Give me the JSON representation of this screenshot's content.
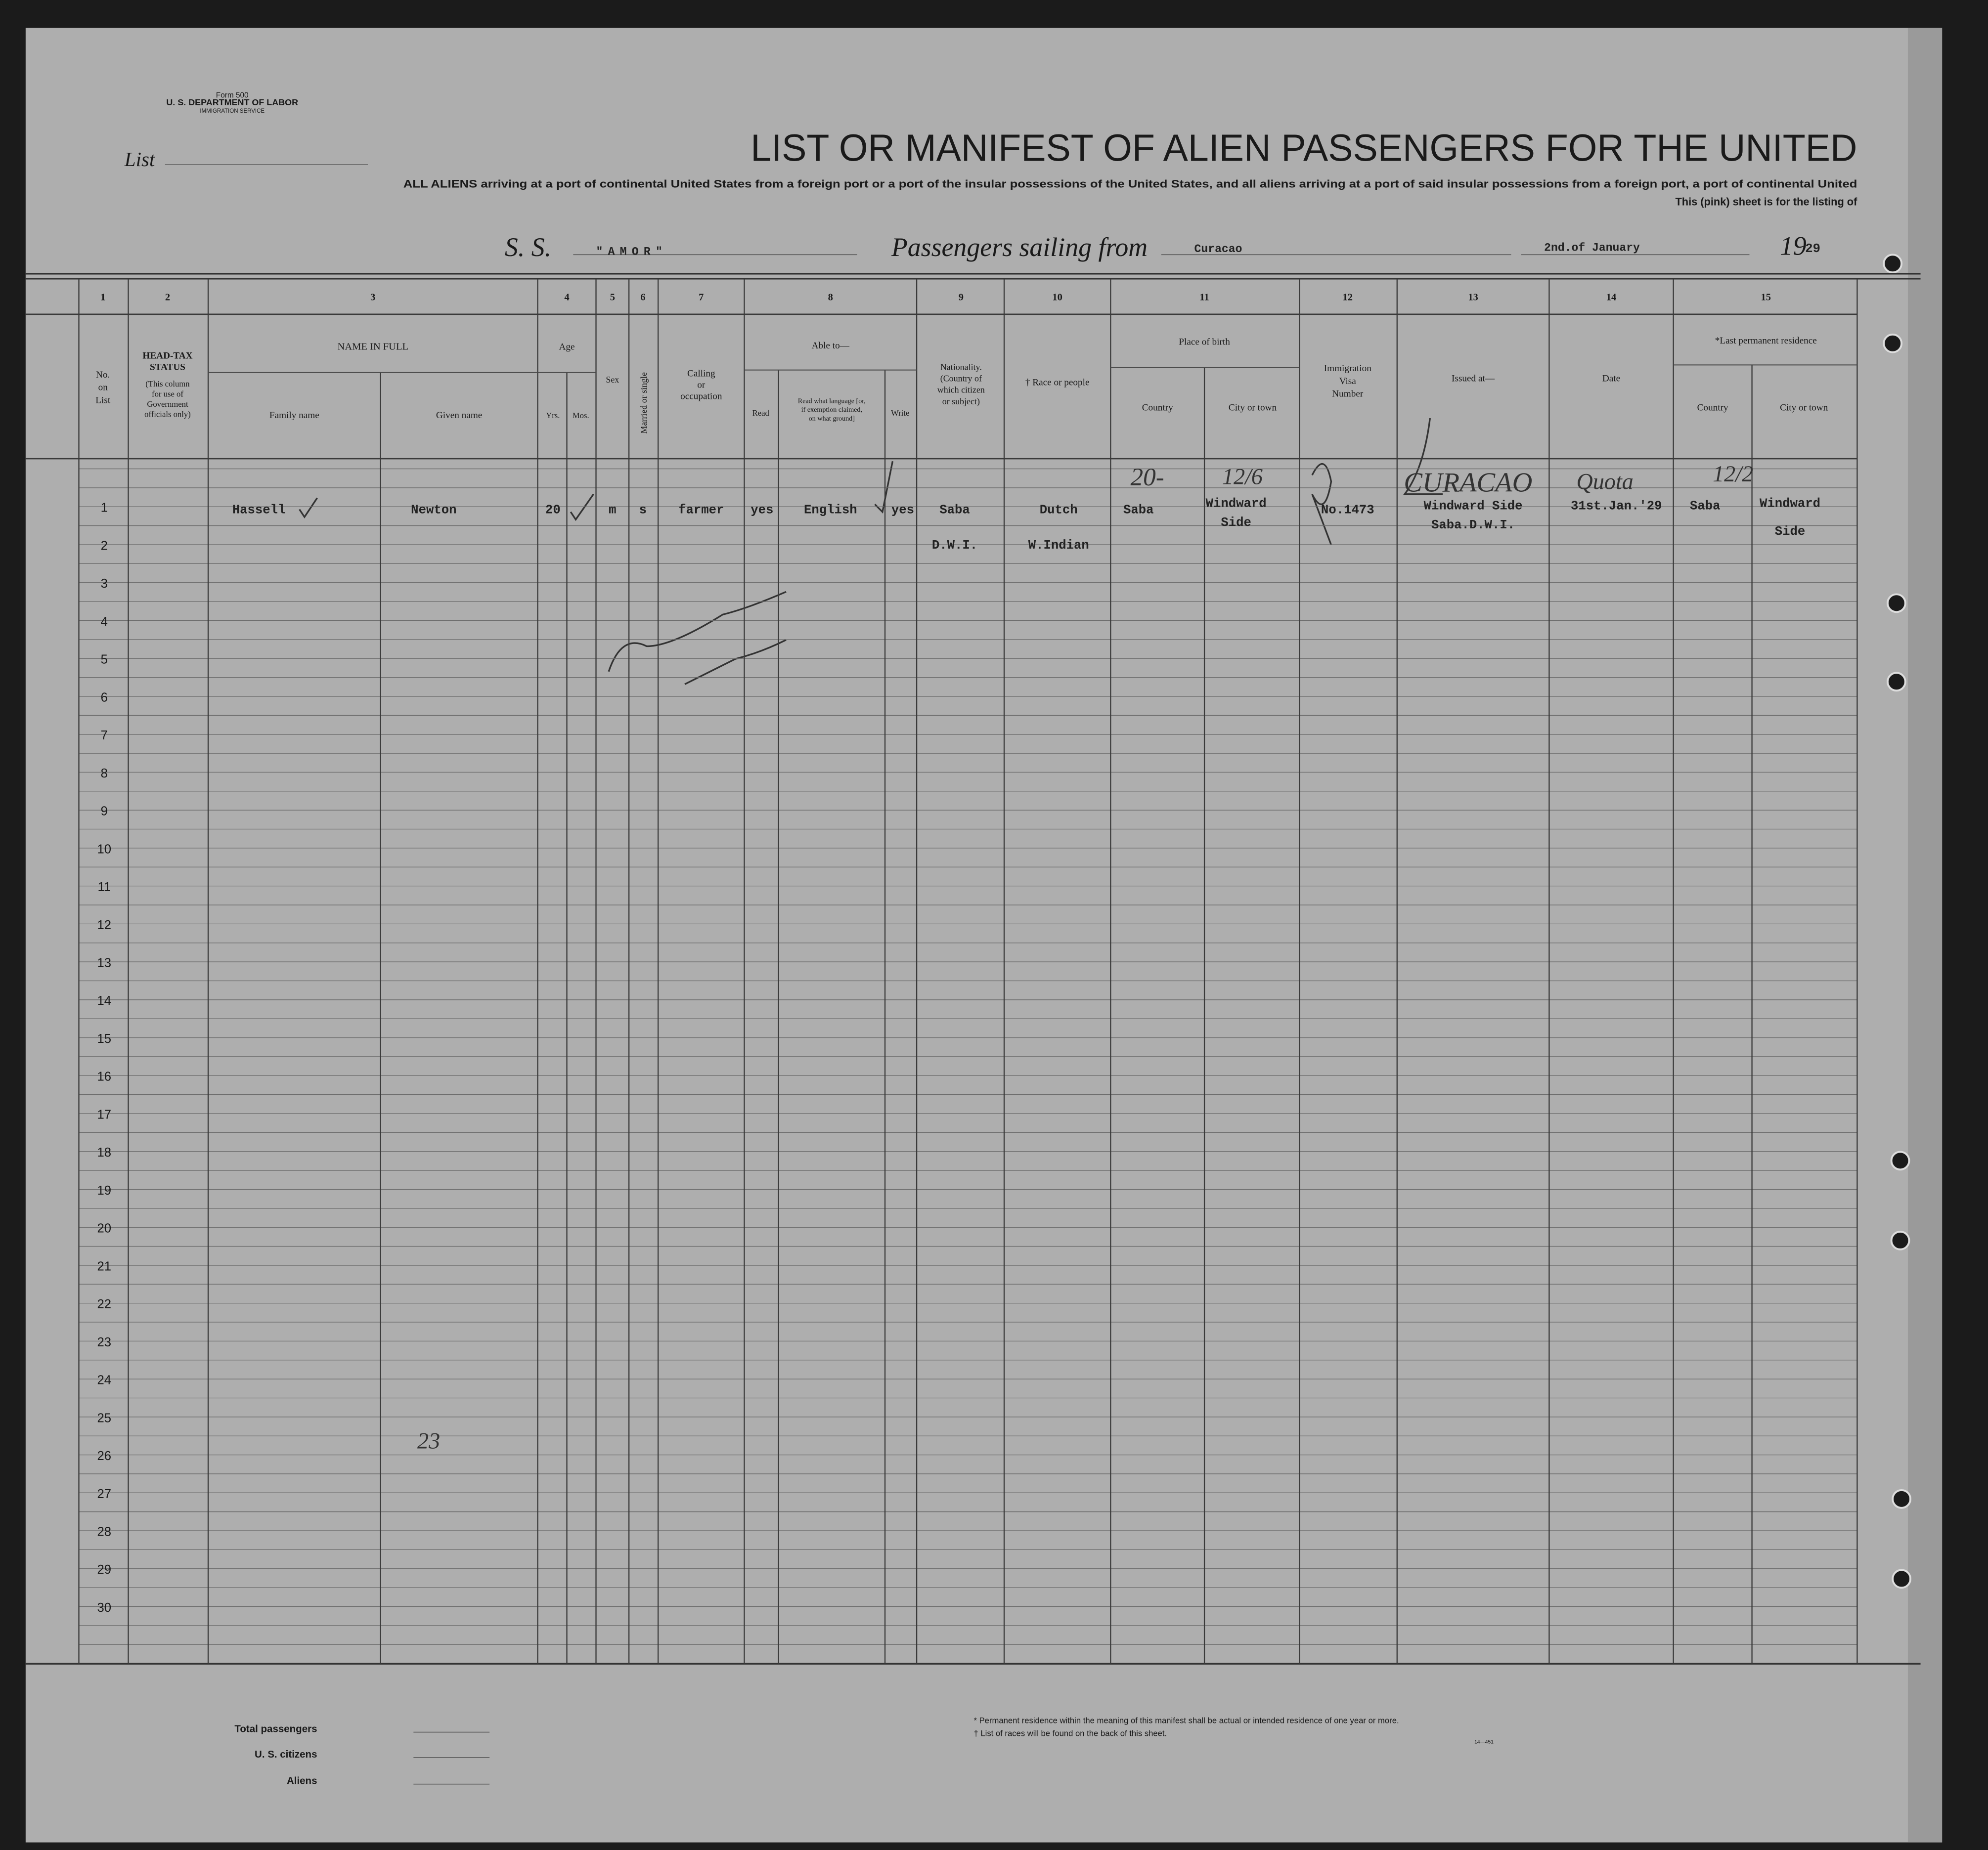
{
  "header": {
    "form_number": "Form 500",
    "department": "U. S. DEPARTMENT OF LABOR",
    "service": "IMMIGRATION SERVICE",
    "list_label": "List",
    "title": "LIST OR MANIFEST OF ALIEN PASSENGERS FOR THE UNITED",
    "instructions": [
      "ALL ALIENS arriving at a port of continental United States from a foreign port or a port of the insular possessions of the United States, and all aliens arriving at a port of said insular possessions from a foreign port, a port of continental United",
      "This (pink) sheet is for the listing of"
    ],
    "ship_prefix": "S. S.",
    "ship_name": "\"AMOR\"",
    "sailing_label": "Passengers sailing from",
    "port": "Curacao",
    "date": "2nd.of January",
    "year_prefix": "19",
    "year": "29"
  },
  "column_numbers": [
    1,
    2,
    3,
    4,
    5,
    6,
    7,
    8,
    9,
    10,
    11,
    12,
    13,
    14,
    15
  ],
  "column_headers": {
    "no_on_list": [
      "No.",
      "on",
      "List"
    ],
    "head_tax": [
      "HEAD-TAX",
      "STATUS"
    ],
    "head_tax_note": [
      "(This column",
      "for use of",
      "Government",
      "officials only)"
    ],
    "name_in_full": "NAME IN FULL",
    "family_name": "Family name",
    "given_name": "Given name",
    "age": "Age",
    "yrs": "Yrs.",
    "mos": "Mos.",
    "sex": "Sex",
    "married": "Married or single",
    "calling": [
      "Calling",
      "or",
      "occupation"
    ],
    "able_to": "Able to—",
    "read": "Read",
    "read_language": [
      "Read what language [or,",
      "if exemption claimed,",
      "on what ground]"
    ],
    "write": "Write",
    "nationality": [
      "Nationality.",
      "(Country of",
      "which citizen",
      "or subject)"
    ],
    "race": "† Race or people",
    "place_of_birth": "Place of birth",
    "birth_country": "Country",
    "birth_city": "City or town",
    "visa": [
      "Immigration",
      "Visa",
      "Number"
    ],
    "issued_at": "Issued at—",
    "date": "Date",
    "last_residence": "*Last permanent residence",
    "res_country": "Country",
    "res_city": "City or town"
  },
  "row_numbers": [
    1,
    2,
    3,
    4,
    5,
    6,
    7,
    8,
    9,
    10,
    11,
    12,
    13,
    14,
    15,
    16,
    17,
    18,
    19,
    20,
    21,
    22,
    23,
    24,
    25,
    26,
    27,
    28,
    29,
    30
  ],
  "passengers": [
    {
      "family_name": "Hassell",
      "given_name": "Newton",
      "age_years": "20",
      "sex": "m",
      "marital": "s",
      "occupation": "farmer",
      "read": "yes",
      "language": "English",
      "write": "yes",
      "nationality": [
        "Saba",
        "D.W.I."
      ],
      "race": [
        "Dutch",
        "W.Indian"
      ],
      "birth_country": "Saba",
      "birth_city": [
        "Windward",
        "Side"
      ],
      "visa_number": "No.1473",
      "issued_at": [
        "Windward Side",
        "Saba.D.W.I."
      ],
      "visa_date": "31st.Jan.'29",
      "residence_country": "Saba",
      "residence_city": [
        "Windward",
        "Side"
      ]
    }
  ],
  "annotations": [
    "20-",
    "12/6",
    "CURACAO",
    "Quota",
    "12/2",
    "23"
  ],
  "footer": {
    "total_passengers": "Total passengers",
    "us_citizens": "U. S. citizens",
    "aliens": "Aliens",
    "notes": [
      "* Permanent residence within the meaning of this manifest shall be actual or intended residence of one year or more.",
      "† List of races will be found on the back of this sheet."
    ],
    "form_code": "14—451"
  }
}
